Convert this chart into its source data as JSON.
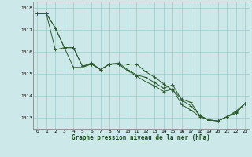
{
  "title": "Graphe pression niveau de la mer (hPa)",
  "background_color": "#cce8e8",
  "grid_color": "#99cccc",
  "line_color": "#2d5a2d",
  "marker_color": "#2d5a2d",
  "ylim": [
    1012.5,
    1018.3
  ],
  "yticks": [
    1013,
    1014,
    1015,
    1016,
    1017,
    1018
  ],
  "xlim": [
    -0.5,
    23.5
  ],
  "xticks": [
    0,
    1,
    2,
    3,
    4,
    5,
    6,
    7,
    8,
    9,
    10,
    11,
    12,
    13,
    14,
    15,
    16,
    17,
    18,
    19,
    20,
    21,
    22,
    23
  ],
  "series1": [
    1017.75,
    1017.75,
    1017.1,
    1016.2,
    1016.2,
    1015.35,
    1015.45,
    1015.2,
    1015.45,
    1015.45,
    1015.45,
    1015.45,
    1015.1,
    1014.85,
    1014.55,
    1014.25,
    1013.85,
    1013.7,
    1013.1,
    1012.9,
    1012.85,
    1013.05,
    1013.25,
    1013.65
  ],
  "series2": [
    1017.75,
    1017.75,
    1016.1,
    1016.2,
    1015.3,
    1015.3,
    1015.45,
    1015.2,
    1015.45,
    1015.45,
    1015.15,
    1014.9,
    1014.65,
    1014.45,
    1014.2,
    1014.3,
    1013.6,
    1013.35,
    1013.05,
    1012.9,
    1012.85,
    1013.05,
    1013.2,
    1013.65
  ],
  "series3": [
    1017.75,
    1017.75,
    1017.1,
    1016.2,
    1016.2,
    1015.35,
    1015.5,
    1015.2,
    1015.45,
    1015.5,
    1015.2,
    1014.95,
    1014.85,
    1014.6,
    1014.35,
    1014.5,
    1013.8,
    1013.55,
    1013.1,
    1012.9,
    1012.85,
    1013.05,
    1013.3,
    1013.65
  ]
}
